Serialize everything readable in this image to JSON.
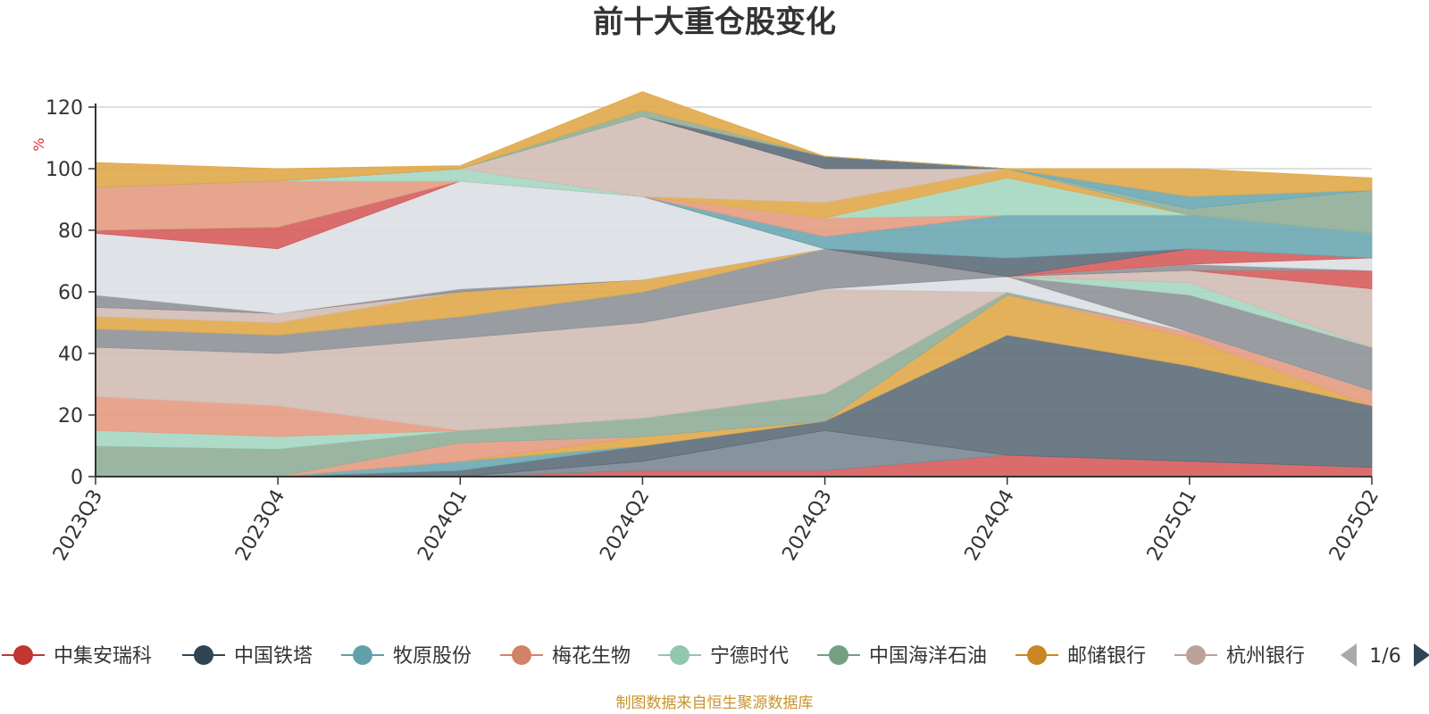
{
  "chart_data": {
    "type": "area",
    "title": "前十大重仓股变化",
    "ylabel": "%",
    "ylim": [
      0,
      120
    ],
    "yticks": [
      0,
      20,
      40,
      60,
      80,
      100,
      120
    ],
    "categories": [
      "2023Q3",
      "2023Q4",
      "2024Q1",
      "2024Q2",
      "2024Q3",
      "2024Q4",
      "2025Q1",
      "2025Q2"
    ],
    "grid": true,
    "stacked": true,
    "legend_position": "bottom",
    "legend_page": "1/6",
    "source_note": "制图数据来自恒生聚源数据库",
    "series": [
      {
        "name": "中集安瑞科",
        "color": "#d75c5c",
        "values": [
          0,
          0,
          0,
          2,
          2,
          7,
          5,
          3
        ]
      },
      {
        "name": "",
        "color": "#7a8893",
        "values": [
          0,
          0,
          0,
          3,
          13,
          0,
          0,
          0
        ]
      },
      {
        "name": "中国铁塔",
        "color": "#5d6d7a",
        "values": [
          0,
          0,
          2,
          5,
          3,
          39,
          31,
          20
        ]
      },
      {
        "name": "牧原股份",
        "color": "#6ba7b3",
        "values": [
          0,
          0,
          3,
          0,
          0,
          0,
          0,
          0
        ]
      },
      {
        "name": "",
        "color": "#e0a94a",
        "values": [
          0,
          0,
          0,
          3,
          0,
          13,
          9,
          0
        ]
      },
      {
        "name": "梅花生物",
        "color": "#e49b82",
        "values": [
          0,
          0,
          6,
          0,
          0,
          0,
          2,
          5
        ]
      },
      {
        "name": "中国海洋石油",
        "color": "#8fae98",
        "values": [
          10,
          9,
          4,
          6,
          9,
          1,
          0,
          0
        ]
      },
      {
        "name": "宁德时代",
        "color": "#a5d7c2",
        "values": [
          5,
          4,
          0,
          0,
          0,
          0,
          0,
          0
        ]
      },
      {
        "name": "梅花生物",
        "color": "#e49b82",
        "values": [
          11,
          10,
          0,
          0,
          0,
          0,
          0,
          0
        ]
      },
      {
        "name": "杭州银行",
        "color": "#d1bcb5",
        "values": [
          16,
          17,
          30,
          31,
          34,
          0,
          0,
          0
        ]
      },
      {
        "name": "",
        "color": "#dbdfe4",
        "values": [
          0,
          0,
          0,
          0,
          0,
          5,
          0,
          0
        ]
      },
      {
        "name": "",
        "color": "#8e9196",
        "values": [
          6,
          6,
          7,
          10,
          13,
          0,
          12,
          14
        ]
      },
      {
        "name": "宁德时代",
        "color": "#a5d7c2",
        "values": [
          0,
          0,
          0,
          0,
          0,
          0,
          4,
          0
        ]
      },
      {
        "name": "邮储银行",
        "color": "#e0a94a",
        "values": [
          4,
          4,
          8,
          4,
          0,
          0,
          0,
          0
        ]
      },
      {
        "name": "杭州银行",
        "color": "#d1bcb5",
        "values": [
          3,
          3,
          0,
          0,
          0,
          0,
          4,
          19
        ]
      },
      {
        "name": "",
        "color": "#d75c5c",
        "values": [
          0,
          0,
          0,
          0,
          0,
          0,
          0,
          6
        ]
      },
      {
        "name": "",
        "color": "#8e9196",
        "values": [
          4,
          0,
          1,
          0,
          0,
          0,
          2,
          0
        ]
      },
      {
        "name": "",
        "color": "#dbdfe4",
        "values": [
          20,
          21,
          35,
          27,
          0,
          0,
          0,
          4
        ]
      },
      {
        "name": "",
        "color": "#d75c5c",
        "values": [
          1,
          7,
          0,
          0,
          0,
          0,
          5,
          0
        ]
      },
      {
        "name": "",
        "color": "#5d6d7a",
        "values": [
          0,
          0,
          0,
          0,
          0,
          6,
          0,
          0
        ]
      },
      {
        "name": "牧原股份",
        "color": "#6ba7b3",
        "values": [
          0,
          0,
          0,
          0,
          4,
          14,
          11,
          8
        ]
      },
      {
        "name": "梅花生物",
        "color": "#e49b82",
        "values": [
          14,
          15,
          0,
          0,
          6,
          0,
          0,
          0
        ]
      },
      {
        "name": "宁德时代",
        "color": "#a5d7c2",
        "values": [
          0,
          0,
          4,
          0,
          0,
          12,
          0,
          0
        ]
      },
      {
        "name": "邮储银行",
        "color": "#e0a94a",
        "values": [
          0,
          0,
          0,
          0,
          5,
          3,
          0,
          0
        ]
      },
      {
        "name": "",
        "color": "#d1bcb5",
        "values": [
          0,
          0,
          0,
          26,
          11,
          0,
          0,
          0
        ]
      },
      {
        "name": "",
        "color": "#5d6d7a",
        "values": [
          0,
          0,
          0,
          0,
          4,
          0,
          0,
          0
        ]
      },
      {
        "name": "",
        "color": "#dbdfe4",
        "values": [
          0,
          0,
          0,
          0,
          0,
          0,
          0,
          0
        ]
      },
      {
        "name": "中国海洋石油",
        "color": "#8fae98",
        "values": [
          0,
          0,
          0,
          2,
          0,
          0,
          2,
          14
        ]
      },
      {
        "name": "牧原股份",
        "color": "#6ba7b3",
        "values": [
          0,
          0,
          0,
          0,
          0,
          0,
          4,
          0
        ]
      },
      {
        "name": "邮储银行",
        "color": "#e0a94a",
        "values": [
          8,
          4,
          1,
          6,
          0,
          0,
          9,
          4
        ]
      }
    ],
    "legend": [
      {
        "name": "中集安瑞科",
        "color": "#c23531"
      },
      {
        "name": "中国铁塔",
        "color": "#2f4554"
      },
      {
        "name": "牧原股份",
        "color": "#61a0a8"
      },
      {
        "name": "梅花生物",
        "color": "#d48265"
      },
      {
        "name": "宁德时代",
        "color": "#91c7ae"
      },
      {
        "name": "中国海洋石油",
        "color": "#749f83"
      },
      {
        "name": "邮储银行",
        "color": "#ca8622"
      },
      {
        "name": "杭州银行",
        "color": "#bda29a"
      }
    ]
  }
}
